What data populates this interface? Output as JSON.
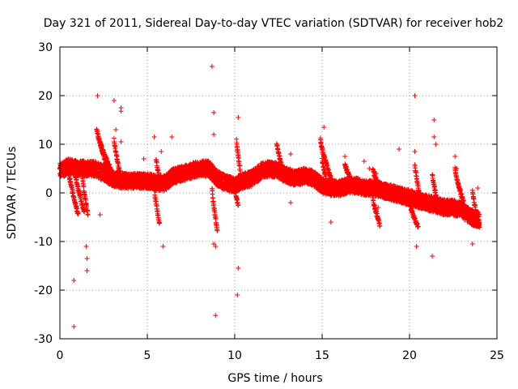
{
  "chart_data": {
    "type": "scatter",
    "title": "Day 321 of 2011, Sidereal Day-to-day VTEC variation (SDTVAR) for receiver hob2",
    "xlabel": "GPS time / hours",
    "ylabel": "SDTVAR / TECUs",
    "xlim": [
      0,
      25
    ],
    "ylim": [
      -30,
      30
    ],
    "x_ticks": [
      0,
      5,
      10,
      15,
      20,
      25
    ],
    "y_ticks": [
      -30,
      -20,
      -10,
      0,
      10,
      20,
      30
    ],
    "x_tick_labels": [
      "0",
      "5",
      "10",
      "15",
      "20",
      "25"
    ],
    "y_tick_labels": [
      "-30",
      "-20",
      "-10",
      "0",
      "10",
      "20",
      "30"
    ],
    "grid": true,
    "legend": "none",
    "marker": "+",
    "marker_color": "#ff0000",
    "series": [
      {
        "name": "SDTVAR",
        "baseline_trend": [
          {
            "x": 0.0,
            "y": 4.5
          },
          {
            "x": 0.5,
            "y": 5.5
          },
          {
            "x": 1.0,
            "y": 5.0
          },
          {
            "x": 1.5,
            "y": 5.0
          },
          {
            "x": 2.0,
            "y": 5.0
          },
          {
            "x": 2.5,
            "y": 4.0
          },
          {
            "x": 3.0,
            "y": 3.0
          },
          {
            "x": 3.5,
            "y": 2.5
          },
          {
            "x": 4.0,
            "y": 2.5
          },
          {
            "x": 4.5,
            "y": 2.5
          },
          {
            "x": 5.0,
            "y": 2.5
          },
          {
            "x": 5.5,
            "y": 2.0
          },
          {
            "x": 6.0,
            "y": 2.0
          },
          {
            "x": 6.5,
            "y": 3.5
          },
          {
            "x": 7.0,
            "y": 4.0
          },
          {
            "x": 7.5,
            "y": 4.5
          },
          {
            "x": 8.0,
            "y": 5.0
          },
          {
            "x": 8.5,
            "y": 5.0
          },
          {
            "x": 9.0,
            "y": 3.0
          },
          {
            "x": 9.5,
            "y": 2.0
          },
          {
            "x": 10.0,
            "y": 1.5
          },
          {
            "x": 10.5,
            "y": 2.5
          },
          {
            "x": 11.0,
            "y": 3.0
          },
          {
            "x": 11.5,
            "y": 4.5
          },
          {
            "x": 12.0,
            "y": 5.0
          },
          {
            "x": 12.5,
            "y": 4.5
          },
          {
            "x": 13.0,
            "y": 3.5
          },
          {
            "x": 13.5,
            "y": 3.0
          },
          {
            "x": 14.0,
            "y": 3.5
          },
          {
            "x": 14.5,
            "y": 3.0
          },
          {
            "x": 15.0,
            "y": 1.5
          },
          {
            "x": 15.5,
            "y": 1.0
          },
          {
            "x": 16.0,
            "y": 1.0
          },
          {
            "x": 16.5,
            "y": 1.5
          },
          {
            "x": 17.0,
            "y": 1.5
          },
          {
            "x": 17.5,
            "y": 1.0
          },
          {
            "x": 18.0,
            "y": 1.0
          },
          {
            "x": 18.5,
            "y": 0.5
          },
          {
            "x": 19.0,
            "y": 0.0
          },
          {
            "x": 19.5,
            "y": -0.5
          },
          {
            "x": 20.0,
            "y": -1.0
          },
          {
            "x": 20.5,
            "y": -1.5
          },
          {
            "x": 21.0,
            "y": -2.0
          },
          {
            "x": 21.5,
            "y": -2.5
          },
          {
            "x": 22.0,
            "y": -3.0
          },
          {
            "x": 22.5,
            "y": -3.0
          },
          {
            "x": 23.0,
            "y": -3.5
          },
          {
            "x": 23.5,
            "y": -5.0
          },
          {
            "x": 24.0,
            "y": -5.5
          }
        ],
        "arcs": [
          {
            "x": [
              0.45,
              1.05
            ],
            "y": [
              5.5,
              -4.5
            ]
          },
          {
            "x": [
              0.75,
              1.4
            ],
            "y": [
              6.5,
              -4.0
            ]
          },
          {
            "x": [
              1.3,
              1.6
            ],
            "y": [
              3.0,
              -4.5
            ]
          },
          {
            "x": [
              2.1,
              3.0
            ],
            "y": [
              13.0,
              4.0
            ]
          },
          {
            "x": [
              2.3,
              3.1
            ],
            "y": [
              10.5,
              2.0
            ]
          },
          {
            "x": [
              3.1,
              3.5
            ],
            "y": [
              11.0,
              3.0
            ]
          },
          {
            "x": [
              5.4,
              5.7
            ],
            "y": [
              1.0,
              -6.5
            ]
          },
          {
            "x": [
              5.5,
              5.8
            ],
            "y": [
              7.0,
              1.5
            ]
          },
          {
            "x": [
              8.6,
              9.1
            ],
            "y": [
              6.0,
              1.5
            ]
          },
          {
            "x": [
              8.7,
              9.0
            ],
            "y": [
              1.0,
              -7.5
            ]
          },
          {
            "x": [
              10.1,
              10.4
            ],
            "y": [
              11.0,
              2.5
            ]
          },
          {
            "x": [
              10.0,
              10.2
            ],
            "y": [
              1.5,
              -2.5
            ]
          },
          {
            "x": [
              12.4,
              12.8
            ],
            "y": [
              10.5,
              4.0
            ]
          },
          {
            "x": [
              14.9,
              15.6
            ],
            "y": [
              11.0,
              2.0
            ]
          },
          {
            "x": [
              15.0,
              15.4
            ],
            "y": [
              7.0,
              0.5
            ]
          },
          {
            "x": [
              16.3,
              16.8
            ],
            "y": [
              6.0,
              1.5
            ]
          },
          {
            "x": [
              17.9,
              18.4
            ],
            "y": [
              5.0,
              0.5
            ]
          },
          {
            "x": [
              17.9,
              18.3
            ],
            "y": [
              -1.0,
              -6.5
            ]
          },
          {
            "x": [
              20.0,
              20.5
            ],
            "y": [
              -2.0,
              -7.0
            ]
          },
          {
            "x": [
              20.3,
              20.6
            ],
            "y": [
              6.0,
              -1.0
            ]
          },
          {
            "x": [
              21.3,
              21.6
            ],
            "y": [
              4.0,
              -2.0
            ]
          },
          {
            "x": [
              22.6,
              23.1
            ],
            "y": [
              5.0,
              -2.0
            ]
          },
          {
            "x": [
              23.6,
              24.0
            ],
            "y": [
              0.5,
              -7.0
            ]
          }
        ],
        "outliers": [
          [
            0.8,
            -18
          ],
          [
            0.8,
            -27.5
          ],
          [
            1.5,
            -11
          ],
          [
            1.55,
            -13.5
          ],
          [
            1.55,
            -16
          ],
          [
            2.15,
            20
          ],
          [
            2.3,
            -4.5
          ],
          [
            3.1,
            19
          ],
          [
            3.5,
            17.5
          ],
          [
            3.5,
            16.8
          ],
          [
            3.5,
            10.5
          ],
          [
            3.2,
            13
          ],
          [
            4.8,
            7
          ],
          [
            5.3,
            1
          ],
          [
            5.4,
            11.5
          ],
          [
            5.9,
            -11
          ],
          [
            5.8,
            8.5
          ],
          [
            6.4,
            11.5
          ],
          [
            8.7,
            26
          ],
          [
            8.8,
            16.5
          ],
          [
            8.8,
            12
          ],
          [
            8.8,
            -10.5
          ],
          [
            8.9,
            -25.2
          ],
          [
            8.9,
            -11
          ],
          [
            10.2,
            15.5
          ],
          [
            10.2,
            -15.5
          ],
          [
            10.15,
            -21
          ],
          [
            13.2,
            8
          ],
          [
            13.2,
            -2
          ],
          [
            15.1,
            13.5
          ],
          [
            15.5,
            -6
          ],
          [
            16.3,
            7.5
          ],
          [
            17.4,
            6.5
          ],
          [
            17.7,
            5
          ],
          [
            18.1,
            4
          ],
          [
            18.2,
            -3
          ],
          [
            19.4,
            9
          ],
          [
            20.3,
            20
          ],
          [
            20.3,
            8.5
          ],
          [
            20.4,
            -11
          ],
          [
            21.4,
            15
          ],
          [
            21.4,
            11.5
          ],
          [
            21.5,
            10
          ],
          [
            21.3,
            -13
          ],
          [
            22.6,
            7.5
          ],
          [
            22.7,
            5
          ],
          [
            23.3,
            -3
          ],
          [
            23.6,
            -10.5
          ],
          [
            23.9,
            1
          ]
        ]
      }
    ]
  }
}
